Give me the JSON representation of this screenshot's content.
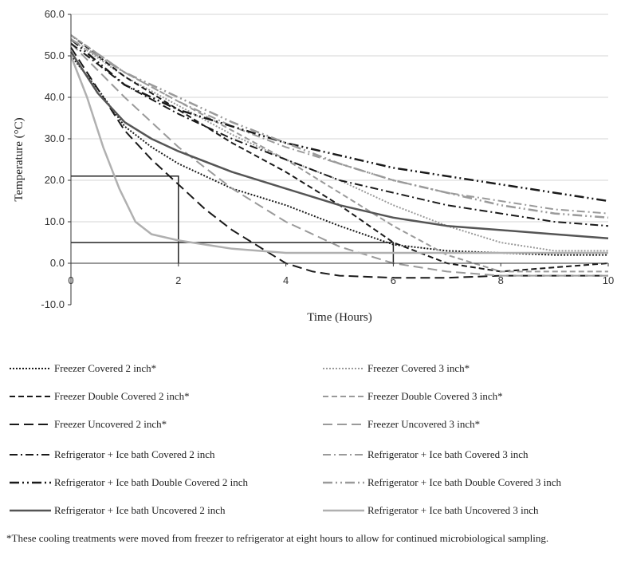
{
  "chart_data": {
    "type": "line",
    "title": "",
    "xlabel": "Time (Hours)",
    "ylabel": "Temperature (°C)",
    "xlim": [
      0,
      10
    ],
    "ylim": [
      -10,
      60
    ],
    "x_ticks": [
      "0",
      "2",
      "4",
      "6",
      "8",
      "10"
    ],
    "y_ticks": [
      "-10.0",
      "0.0",
      "10.0",
      "20.0",
      "30.0",
      "40.0",
      "50.0",
      "60.0"
    ],
    "grid": "horizontal",
    "legend_position": "bottom",
    "reference_lines": [
      {
        "points": [
          [
            0,
            21
          ],
          [
            2,
            21
          ],
          [
            2,
            0
          ]
        ],
        "color": "#222222"
      },
      {
        "points": [
          [
            0,
            5
          ],
          [
            6,
            5
          ],
          [
            6,
            0
          ]
        ],
        "color": "#222222"
      }
    ],
    "series": [
      {
        "name": "Freezer Covered 2 inch*",
        "color": "#1a1a1a",
        "dash": "2,2",
        "width": 2,
        "x": [
          0,
          0.5,
          1,
          1.5,
          2,
          3,
          4,
          5,
          6,
          7,
          8,
          9,
          10
        ],
        "y": [
          50,
          42,
          33,
          28,
          24,
          18,
          14,
          9,
          4.5,
          3,
          2.5,
          2,
          2
        ]
      },
      {
        "name": "Freezer Covered 3 inch*",
        "color": "#9a9a9a",
        "dash": "2,2",
        "width": 2,
        "x": [
          0,
          1,
          2,
          3,
          4,
          5,
          6,
          7,
          8,
          9,
          10
        ],
        "y": [
          54,
          45,
          38,
          31,
          25,
          20,
          14,
          9,
          5,
          3,
          3
        ]
      },
      {
        "name": "Freezer Double Covered 2 inch*",
        "color": "#1a1a1a",
        "dash": "7,4",
        "width": 2,
        "x": [
          0,
          1,
          2,
          3,
          4,
          5,
          6,
          7,
          8,
          9,
          10
        ],
        "y": [
          55,
          45,
          37,
          29,
          22,
          14,
          5,
          0,
          -2,
          -1,
          0
        ]
      },
      {
        "name": "Freezer Double Covered 3 inch*",
        "color": "#9a9a9a",
        "dash": "7,4",
        "width": 2,
        "x": [
          0,
          1,
          2,
          3,
          4,
          5,
          6,
          7,
          8,
          9,
          10
        ],
        "y": [
          55,
          46,
          39,
          32,
          25,
          17,
          9,
          2,
          -2,
          -2,
          -2
        ]
      },
      {
        "name": "Freezer Uncovered 2 inch*",
        "color": "#1a1a1a",
        "dash": "12,6",
        "width": 2,
        "x": [
          0,
          0.5,
          1,
          1.5,
          2,
          2.5,
          3,
          3.5,
          4,
          4.5,
          5,
          6,
          7,
          8,
          9,
          10
        ],
        "y": [
          52,
          42,
          32,
          25,
          19,
          13,
          8,
          4,
          0,
          -2,
          -3,
          -3.5,
          -3.5,
          -3,
          -3,
          -3
        ]
      },
      {
        "name": "Freezer Uncovered 3 inch*",
        "color": "#9a9a9a",
        "dash": "12,6",
        "width": 2,
        "x": [
          0,
          1,
          2,
          3,
          4,
          5,
          6,
          7,
          8,
          9,
          10
        ],
        "y": [
          53,
          40,
          28,
          18,
          10,
          4,
          0,
          -2,
          -3,
          -3,
          -3
        ]
      },
      {
        "name": "Refrigerator + Ice bath Covered 2 inch",
        "color": "#1a1a1a",
        "dash": "10,4,2,4",
        "width": 2,
        "x": [
          0,
          1,
          2,
          3,
          4,
          5,
          6,
          7,
          8,
          9,
          10
        ],
        "y": [
          53,
          43,
          36,
          30,
          25,
          20,
          17,
          14,
          12,
          10,
          9
        ]
      },
      {
        "name": "Refrigerator + Ice bath Covered 3 inch",
        "color": "#9a9a9a",
        "dash": "10,4,2,4",
        "width": 2,
        "x": [
          0,
          1,
          2,
          3,
          4,
          5,
          6,
          7,
          8,
          9,
          10
        ],
        "y": [
          55,
          46,
          39,
          33,
          28,
          24,
          20,
          17,
          15,
          13,
          12
        ]
      },
      {
        "name": "Refrigerator + Ice bath Double Covered 2 inch",
        "color": "#1a1a1a",
        "dash": "12,4,2,4,2,4",
        "width": 2.5,
        "x": [
          0,
          1,
          2,
          3,
          4,
          5,
          6,
          7,
          8,
          9,
          10
        ],
        "y": [
          54,
          43,
          37,
          33,
          29,
          26,
          23,
          21,
          19,
          17,
          15
        ]
      },
      {
        "name": "Refrigerator + Ice bath Double Covered 3 inch",
        "color": "#9a9a9a",
        "dash": "12,4,2,4,2,4",
        "width": 2.5,
        "x": [
          0,
          1,
          2,
          3,
          4,
          5,
          6,
          7,
          8,
          9,
          10
        ],
        "y": [
          54,
          46,
          40,
          34,
          29,
          24,
          20,
          17,
          14,
          12,
          11
        ]
      },
      {
        "name": "Refrigerator + Ice bath Uncovered 2 inch",
        "color": "#555555",
        "dash": "",
        "width": 2.5,
        "x": [
          0,
          0.5,
          1,
          1.5,
          2,
          3,
          4,
          5,
          6,
          7,
          8,
          9,
          10
        ],
        "y": [
          51,
          41,
          34,
          30,
          27,
          22,
          18,
          14,
          11,
          9,
          8,
          7,
          6
        ]
      },
      {
        "name": "Refrigerator + Ice bath Uncovered 3 inch",
        "color": "#b0b0b0",
        "dash": "",
        "width": 2.5,
        "x": [
          0,
          0.3,
          0.6,
          0.9,
          1.2,
          1.5,
          2,
          2.5,
          3,
          4,
          5,
          6,
          7,
          8,
          10
        ],
        "y": [
          50,
          40,
          28,
          18,
          10,
          7,
          5.5,
          4.5,
          3.5,
          2.5,
          2.5,
          2.5,
          2.5,
          2.5,
          2.5
        ]
      }
    ]
  },
  "footnote": "*These cooling treatments were moved from freezer to refrigerator at eight hours to allow for continued microbiological sampling."
}
